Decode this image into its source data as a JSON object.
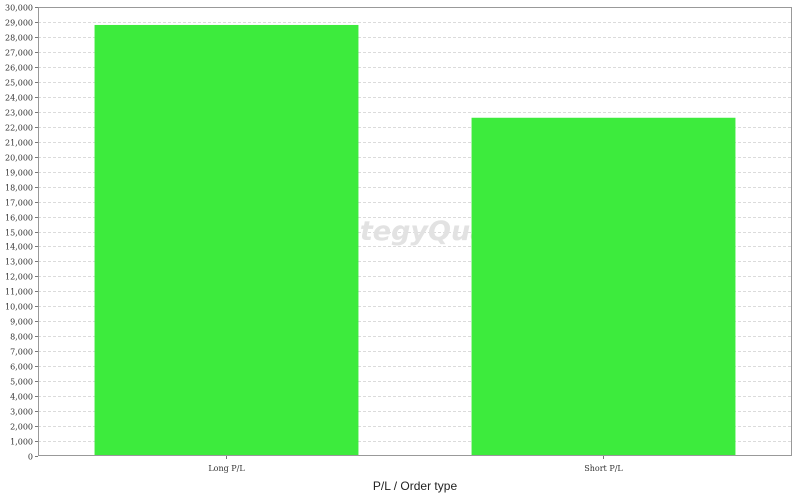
{
  "chart_data": {
    "type": "bar",
    "categories": [
      "Long P/L",
      "Short P/L"
    ],
    "values": [
      28800,
      22600
    ],
    "title": "",
    "xlabel": "P/L / Order type",
    "ylabel": "",
    "ylim": [
      0,
      30000
    ],
    "ytick_step": 1000,
    "grid": true,
    "legend": "none",
    "bar_color": "#3deb3d",
    "watermark": "StrategyQuant"
  }
}
